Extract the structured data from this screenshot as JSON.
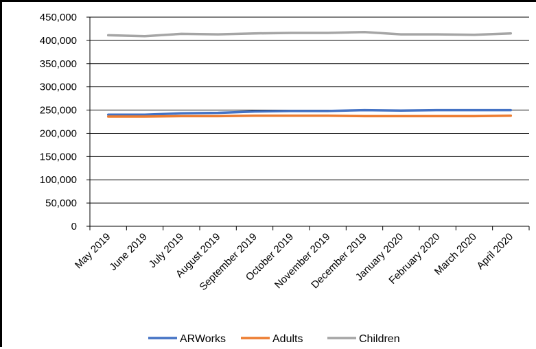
{
  "chart_data": {
    "type": "line",
    "title": "",
    "xlabel": "",
    "ylabel": "",
    "categories": [
      "May 2019",
      "June 2019",
      "July 2019",
      "August 2019",
      "September 2019",
      "October 2019",
      "November 2019",
      "December 2019",
      "January 2020",
      "February 2020",
      "March 2020",
      "April 2020"
    ],
    "ylim": [
      0,
      450000
    ],
    "yticks": [
      0,
      50000,
      100000,
      150000,
      200000,
      250000,
      300000,
      350000,
      400000,
      450000
    ],
    "ytick_labels": [
      "0",
      "50,000",
      "100,000",
      "150,000",
      "200,000",
      "250,000",
      "300,000",
      "350,000",
      "400,000",
      "450,000"
    ],
    "grid": true,
    "legend_position": "bottom",
    "series": [
      {
        "name": "ARWorks",
        "color": "#4472C4",
        "values": [
          240000,
          240000,
          243000,
          244000,
          247000,
          248000,
          248000,
          250000,
          249000,
          250000,
          250000,
          250000
        ]
      },
      {
        "name": "Adults",
        "color": "#ED7D31",
        "values": [
          236000,
          236000,
          237000,
          237000,
          238000,
          238000,
          238000,
          237000,
          237000,
          237000,
          237000,
          238000
        ]
      },
      {
        "name": "Children",
        "color": "#A5A5A5",
        "values": [
          411000,
          409000,
          414000,
          413000,
          415000,
          416000,
          416000,
          418000,
          413000,
          413000,
          412000,
          415000
        ]
      }
    ]
  }
}
